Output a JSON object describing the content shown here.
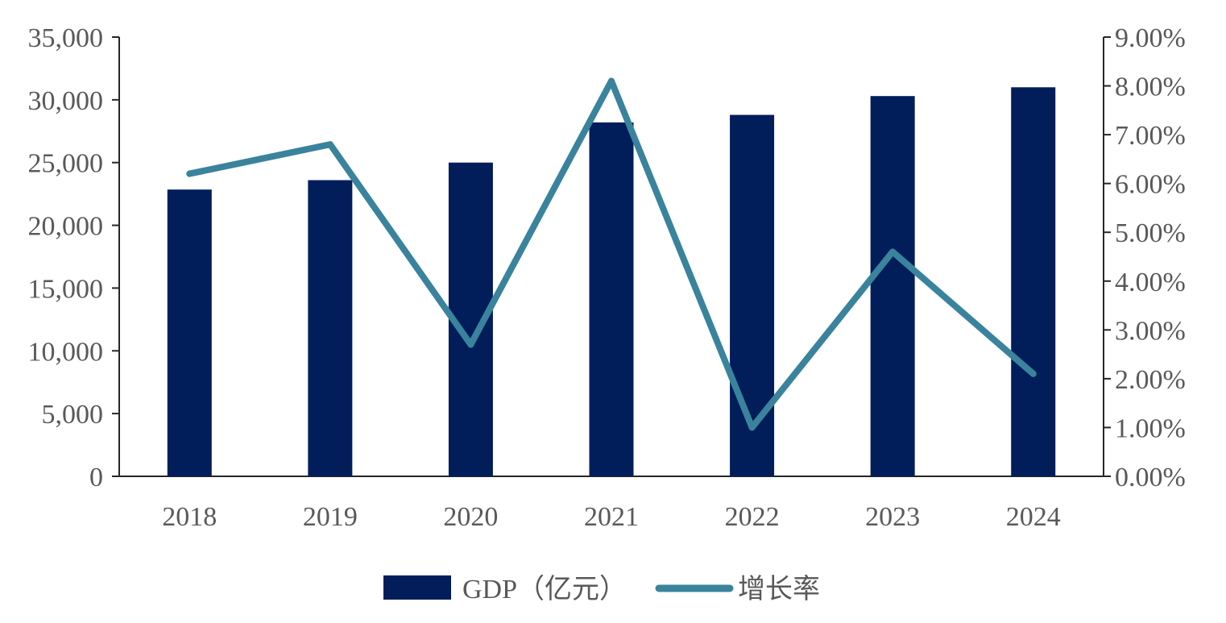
{
  "chart_data": {
    "type": "bar+line",
    "categories": [
      "2018",
      "2019",
      "2020",
      "2021",
      "2022",
      "2023",
      "2024"
    ],
    "series": [
      {
        "name": "GDP（亿元）",
        "type": "bar",
        "axis": "left",
        "color": "#021e5a",
        "values": [
          22850,
          23600,
          25000,
          28200,
          28800,
          30300,
          31000
        ]
      },
      {
        "name": "增长率",
        "type": "line",
        "axis": "right",
        "color": "#3a839c",
        "values": [
          6.2,
          6.8,
          2.7,
          8.1,
          1.0,
          4.6,
          2.1
        ]
      }
    ],
    "left_axis": {
      "min": 0,
      "max": 35000,
      "tick_labels": [
        "0",
        "5,000",
        "10,000",
        "15,000",
        "20,000",
        "25,000",
        "30,000",
        "35,000"
      ]
    },
    "right_axis": {
      "min": 0,
      "max": 9,
      "tick_labels": [
        "0.00%",
        "1.00%",
        "2.00%",
        "3.00%",
        "4.00%",
        "5.00%",
        "6.00%",
        "7.00%",
        "8.00%",
        "9.00%"
      ]
    },
    "title": "",
    "xlabel": "",
    "ylabel": "",
    "grid": false,
    "legend": {
      "position": "bottom-center",
      "items": [
        "GDP（亿元）",
        "增长率"
      ]
    }
  }
}
